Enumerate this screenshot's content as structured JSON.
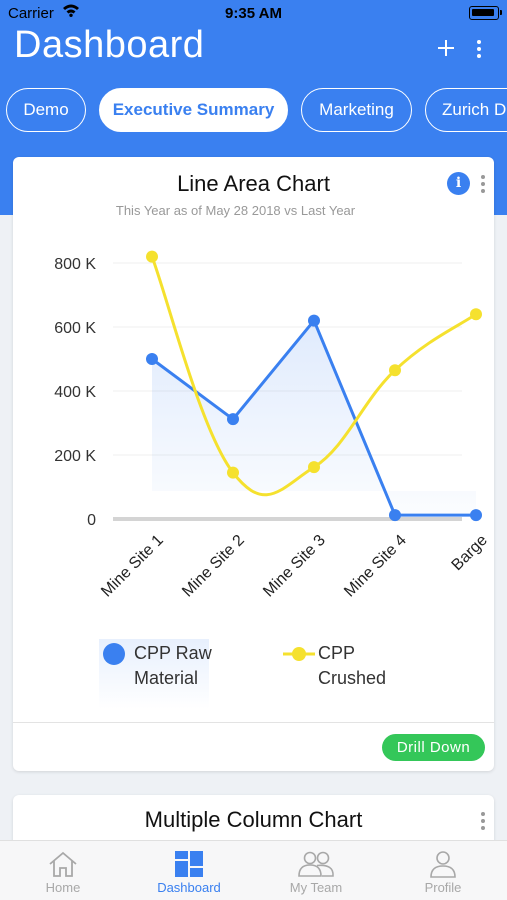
{
  "status_bar": {
    "carrier": "Carrier",
    "time": "9:35 AM"
  },
  "header": {
    "title": "Dashboard",
    "actions": [
      {
        "icon": "plus-icon"
      },
      {
        "icon": "more-vertical-icon"
      }
    ]
  },
  "tabs": [
    {
      "label": "Demo",
      "active": false
    },
    {
      "label": "Executive Summary",
      "active": true
    },
    {
      "label": "Marketing",
      "active": false
    },
    {
      "label": "Zurich D",
      "active": false
    }
  ],
  "cards": [
    {
      "title": "Line Area Chart",
      "subtitle": "This Year as of May 28 2018 vs Last Year",
      "info_icon": "i",
      "action_label": "Drill Down",
      "action_color": "#34c759"
    },
    {
      "title": "Multiple Column Chart"
    }
  ],
  "chart_data": {
    "type": "line",
    "categories": [
      "Mine Site 1",
      "Mine Site 2",
      "Mine Site 3",
      "Mine Site 4",
      "Barge"
    ],
    "y_ticks": [
      "0",
      "200 K",
      "400 K",
      "600 K",
      "800 K"
    ],
    "ylim": [
      0,
      800000
    ],
    "grid": true,
    "legend_position": "bottom",
    "series": [
      {
        "name": "CPP Raw Material",
        "color": "#3a80f0",
        "area": true,
        "values": [
          500000,
          312000,
          620000,
          12000,
          12000
        ]
      },
      {
        "name": "CPP Crushed",
        "color": "#f5e12e",
        "smooth": true,
        "values": [
          820000,
          145000,
          162000,
          465000,
          640000
        ]
      }
    ]
  },
  "tab_bar": [
    {
      "label": "Home",
      "icon": "home-icon",
      "active": false
    },
    {
      "label": "Dashboard",
      "icon": "dashboard-icon",
      "active": true
    },
    {
      "label": "My Team",
      "icon": "team-icon",
      "active": false
    },
    {
      "label": "Profile",
      "icon": "profile-icon",
      "active": false
    }
  ],
  "colors": {
    "primary": "#3a80f0",
    "background": "#eef1f5",
    "inactive": "#a8a8a8"
  }
}
